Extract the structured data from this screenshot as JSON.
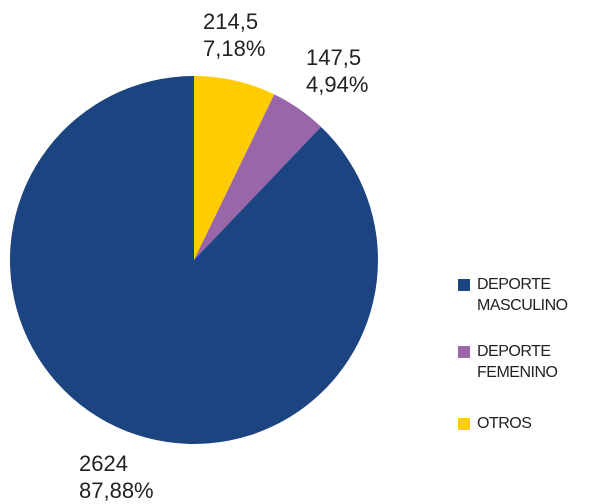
{
  "chart_data": {
    "type": "pie",
    "title": "",
    "start_angle_deg": 0,
    "direction": "clockwise",
    "slices": [
      {
        "name": "OTROS",
        "legend_label": "OTROS",
        "value": 214.5,
        "value_label": "214,5",
        "percent": 7.18,
        "percent_label": "7,18%",
        "color": "#FFCC00"
      },
      {
        "name": "DEPORTE FEMENINO",
        "legend_label": "DEPORTE\nFEMENINO",
        "value": 147.5,
        "value_label": "147,5",
        "percent": 4.94,
        "percent_label": "4,94%",
        "color": "#9966AA"
      },
      {
        "name": "DEPORTE MASCULINO",
        "legend_label": "DEPORTE\nMASCULINO",
        "value": 2624,
        "value_label": "2624",
        "percent": 87.88,
        "percent_label": "87,88%",
        "color": "#1B4480"
      }
    ],
    "legend_order": [
      "DEPORTE MASCULINO",
      "DEPORTE FEMENINO",
      "OTROS"
    ],
    "legend_position": "right"
  }
}
